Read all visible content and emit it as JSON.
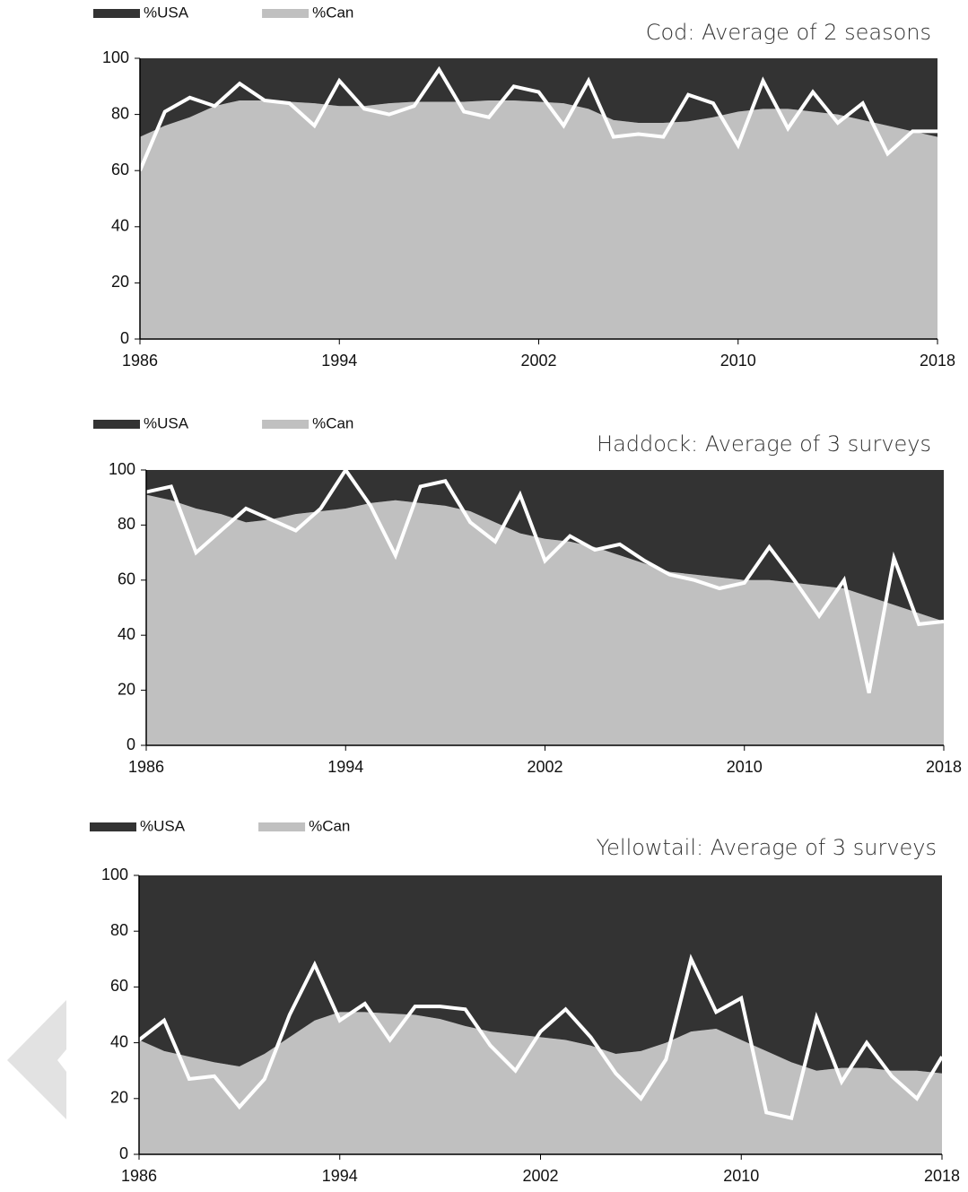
{
  "chart_data": [
    {
      "type": "area",
      "title": "Cod: Average of 2 seasons",
      "x": [
        1986,
        1987,
        1988,
        1989,
        1990,
        1991,
        1992,
        1993,
        1994,
        1995,
        1996,
        1997,
        1998,
        1999,
        2000,
        2001,
        2002,
        2003,
        2004,
        2005,
        2006,
        2007,
        2008,
        2009,
        2010,
        2011,
        2012,
        2013,
        2014,
        2015,
        2016,
        2017,
        2018
      ],
      "series": [
        {
          "name": "%USA",
          "color": "#333333",
          "values": [
            28,
            24,
            21,
            17,
            15,
            15,
            15.5,
            16,
            17,
            17,
            16,
            15.5,
            15.5,
            15.5,
            15,
            15,
            15.5,
            16,
            18,
            22,
            23,
            23,
            22.5,
            21,
            19,
            18,
            18,
            19,
            20,
            22,
            24,
            26,
            28
          ]
        },
        {
          "name": "%Can",
          "color": "#c0c0c0",
          "values": [
            72,
            76,
            79,
            83,
            85,
            85,
            84.5,
            84,
            83,
            83,
            84,
            84.5,
            84.5,
            84.5,
            85,
            85,
            84.5,
            84,
            82,
            78,
            77,
            77,
            77.5,
            79,
            81,
            82,
            82,
            81,
            80,
            78,
            76,
            74,
            72
          ]
        },
        {
          "type": "line",
          "color": "#ffffff",
          "values": [
            60,
            81,
            86,
            83,
            91,
            85,
            84,
            76,
            92,
            82,
            80,
            83,
            96,
            81,
            79,
            90,
            88,
            76,
            92,
            72,
            73,
            72,
            87,
            84,
            69,
            92,
            75,
            88,
            77,
            84,
            66,
            74,
            74
          ]
        }
      ],
      "xlim": [
        1986,
        2018
      ],
      "xticks": [
        1986,
        1994,
        2002,
        2010,
        2018
      ],
      "ylim": [
        0,
        100
      ],
      "yticks": [
        0,
        20,
        40,
        60,
        80,
        100
      ],
      "stacked": true
    },
    {
      "type": "area",
      "title": "Haddock: Average of 3 surveys",
      "x": [
        1986,
        1987,
        1988,
        1989,
        1990,
        1991,
        1992,
        1993,
        1994,
        1995,
        1996,
        1997,
        1998,
        1999,
        2000,
        2001,
        2002,
        2003,
        2004,
        2005,
        2006,
        2007,
        2008,
        2009,
        2010,
        2011,
        2012,
        2013,
        2014,
        2015,
        2016,
        2017,
        2018
      ],
      "series": [
        {
          "name": "%USA",
          "color": "#333333",
          "values": [
            9,
            11,
            14,
            16,
            19,
            18,
            16,
            15,
            14,
            12,
            11,
            12,
            13,
            15,
            19,
            23,
            25,
            26,
            28,
            31,
            34,
            37,
            38,
            39,
            40,
            40,
            41,
            42,
            43,
            46,
            49,
            52,
            55
          ]
        },
        {
          "name": "%Can",
          "color": "#c0c0c0",
          "values": [
            91,
            89,
            86,
            84,
            81,
            82,
            84,
            85,
            86,
            88,
            89,
            88,
            87,
            85,
            81,
            77,
            75,
            74,
            72,
            69,
            66,
            63,
            62,
            61,
            60,
            60,
            59,
            58,
            57,
            54,
            51,
            48,
            45
          ]
        },
        {
          "type": "line",
          "color": "#ffffff",
          "values": [
            92,
            94,
            70,
            78,
            86,
            82,
            78,
            86,
            100,
            87,
            69,
            94,
            96,
            81,
            74,
            91,
            67,
            76,
            71,
            73,
            67,
            62,
            60,
            57,
            59,
            72,
            60,
            47,
            60,
            19,
            68,
            44,
            45
          ]
        }
      ],
      "xlim": [
        1986,
        2018
      ],
      "xticks": [
        1986,
        1994,
        2002,
        2010,
        2018
      ],
      "ylim": [
        0,
        100
      ],
      "yticks": [
        0,
        20,
        40,
        60,
        80,
        100
      ],
      "stacked": true
    },
    {
      "type": "area",
      "title": "Yellowtail: Average of 3 surveys",
      "x": [
        1986,
        1987,
        1988,
        1989,
        1990,
        1991,
        1992,
        1993,
        1994,
        1995,
        1996,
        1997,
        1998,
        1999,
        2000,
        2001,
        2002,
        2003,
        2004,
        2005,
        2006,
        2007,
        2008,
        2009,
        2010,
        2011,
        2012,
        2013,
        2014,
        2015,
        2016,
        2017,
        2018
      ],
      "series": [
        {
          "name": "%USA",
          "color": "#333333",
          "values": [
            59,
            63,
            65,
            67,
            68.5,
            64,
            58,
            52,
            49,
            49,
            49.5,
            50,
            51.5,
            54,
            56,
            57,
            58,
            59,
            61,
            64,
            63,
            60,
            56,
            55,
            59,
            63,
            67,
            70,
            69,
            69,
            70,
            70,
            71
          ]
        },
        {
          "name": "%Can",
          "color": "#c0c0c0",
          "values": [
            41,
            37,
            35,
            33,
            31.5,
            36,
            42,
            48,
            51,
            51,
            50.5,
            50,
            48.5,
            46,
            44,
            43,
            42,
            41,
            39,
            36,
            37,
            40,
            44,
            45,
            41,
            37,
            33,
            30,
            31,
            31,
            30,
            30,
            29
          ]
        },
        {
          "type": "line",
          "color": "#ffffff",
          "values": [
            41,
            48,
            27,
            28,
            17,
            27,
            50,
            68,
            48,
            54,
            41,
            53,
            53,
            52,
            39,
            30,
            44,
            52,
            42,
            29,
            20,
            34,
            70,
            51,
            56,
            15,
            13,
            49,
            26,
            40,
            28,
            20,
            35
          ]
        }
      ],
      "xlim": [
        1986,
        2018
      ],
      "xticks": [
        1986,
        1994,
        2002,
        2010,
        2018
      ],
      "ylim": [
        0,
        100
      ],
      "yticks": [
        0,
        20,
        40,
        60,
        80,
        100
      ],
      "stacked": true
    }
  ]
}
